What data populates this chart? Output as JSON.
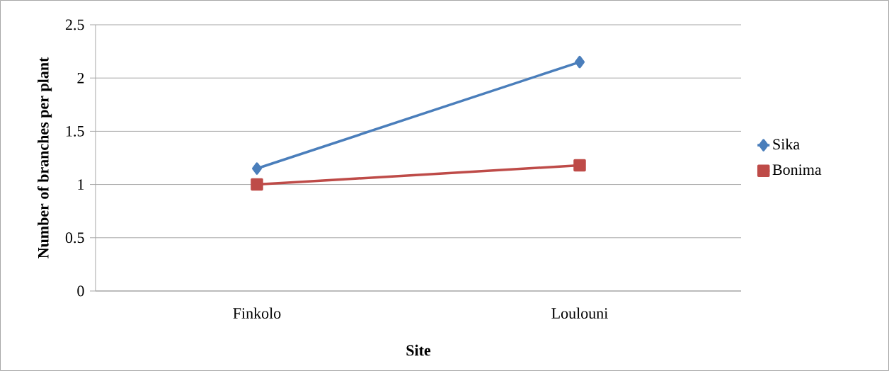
{
  "chart_data": {
    "type": "line",
    "xlabel": "Site",
    "ylabel": "Number of branches per plant",
    "categories": [
      "Finkolo",
      "Loulouni"
    ],
    "series": [
      {
        "name": "Sika",
        "color": "#4a7ebb",
        "marker": "diamond",
        "values": [
          1.15,
          2.15
        ]
      },
      {
        "name": "Bonima",
        "color": "#be4b48",
        "marker": "square",
        "values": [
          1.0,
          1.18
        ]
      }
    ],
    "ylim": [
      0,
      2.5
    ],
    "yticks": [
      0,
      0.5,
      1,
      1.5,
      2,
      2.5
    ],
    "grid": "y",
    "legend": "right"
  }
}
